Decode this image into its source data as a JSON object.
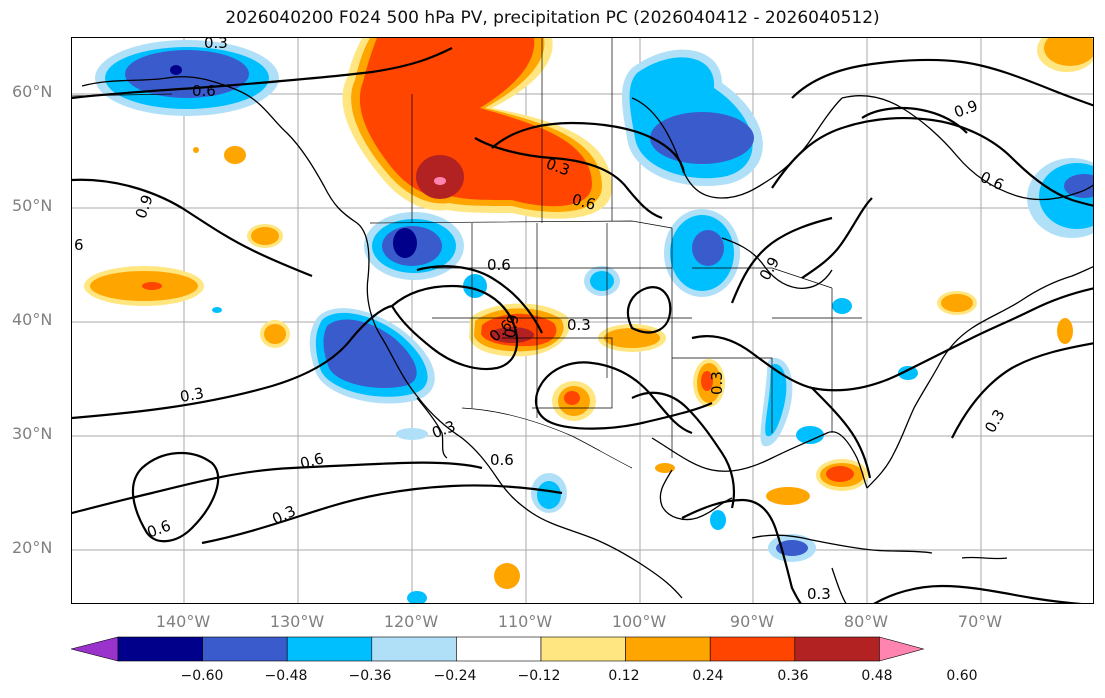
{
  "title": "2026040200 F024 500 hPa PV, precipitation PC (2026040412 - 2026040512)",
  "map": {
    "lat_labels": [
      "60°N",
      "50°N",
      "40°N",
      "30°N",
      "20°N"
    ],
    "lon_labels": [
      "140°W",
      "130°W",
      "120°W",
      "110°W",
      "100°W",
      "90°W",
      "80°W",
      "70°W"
    ],
    "contour_labels": [
      "0.3",
      "0.6",
      "0.9",
      "0.3",
      "0.6",
      "0.3",
      "0.6",
      "0.6",
      "0.3",
      "0.6",
      "0.9",
      "0.3",
      "0.3",
      "0.9",
      "0.6",
      "0.9",
      "0.3",
      "0.3",
      "0.6",
      "0.3",
      "0.6",
      "6"
    ]
  },
  "colorbar": {
    "ticks": [
      "−0.60",
      "−0.48",
      "−0.36",
      "−0.24",
      "−0.12",
      "0.12",
      "0.24",
      "0.36",
      "0.48",
      "0.60"
    ],
    "colors": [
      "#9933cc",
      "#00008b",
      "#3a5bcc",
      "#00bfff",
      "#b0e0f8",
      "#ffffff",
      "#ffe680",
      "#ffa500",
      "#ff4500",
      "#b22222",
      "#ff85b0"
    ]
  }
}
